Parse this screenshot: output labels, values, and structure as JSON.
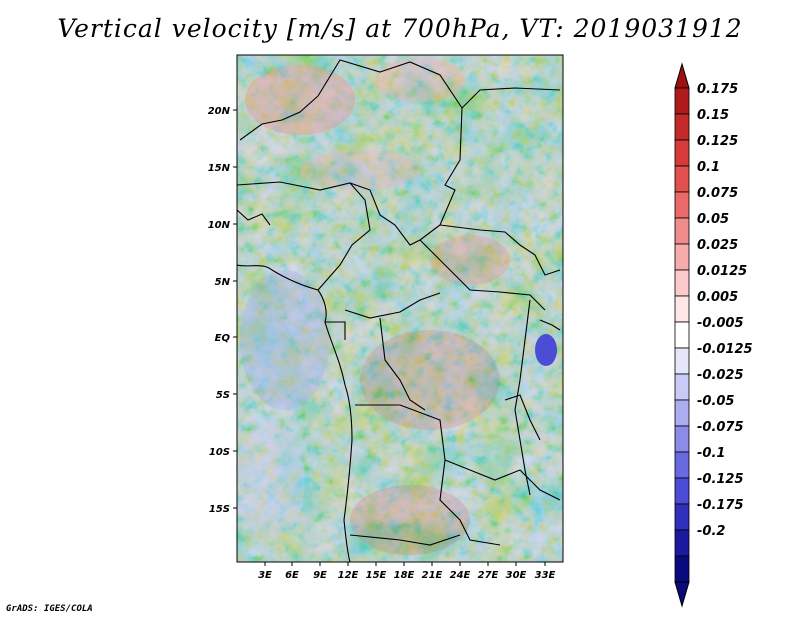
{
  "title": "Vertical velocity [m/s] at 700hPa, VT: 2019031912",
  "credit": "GrADS: IGES/COLA",
  "map": {
    "lat_labels": [
      "20N",
      "15N",
      "10N",
      "5N",
      "EQ",
      "5S",
      "10S",
      "15S"
    ],
    "lon_labels": [
      "3E",
      "6E",
      "9E",
      "12E",
      "15E",
      "18E",
      "21E",
      "24E",
      "27E",
      "30E",
      "33E"
    ]
  },
  "colorbar": {
    "levels": [
      "0.175",
      "0.15",
      "0.125",
      "0.1",
      "0.075",
      "0.05",
      "0.025",
      "0.0125",
      "0.005",
      "-0.005",
      "-0.0125",
      "-0.025",
      "-0.05",
      "-0.075",
      "-0.1",
      "-0.125",
      "-0.175",
      "-0.2"
    ],
    "colors": [
      "#b01a1a",
      "#c42a2a",
      "#d63a3a",
      "#e25050",
      "#ea6a6a",
      "#f08c8c",
      "#f6acac",
      "#fbcaca",
      "#fee6e6",
      "#ffffff",
      "#e6e6fb",
      "#cacaf6",
      "#acacf0",
      "#8c8ce8",
      "#6a6ae0",
      "#4c4cd4",
      "#3030bc",
      "#1a1aa0",
      "#0a0a80"
    ],
    "top_color": "#a01010",
    "bottom_color": "#0a0a7a"
  }
}
